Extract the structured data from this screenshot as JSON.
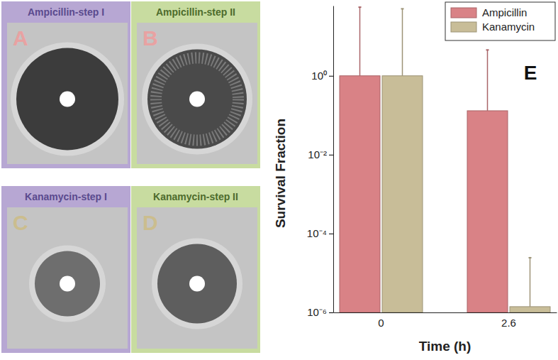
{
  "panels": [
    {
      "title": "Ampicillin-step I",
      "label": "A"
    },
    {
      "title": "Ampicillin-step II",
      "label": "B"
    },
    {
      "title": "Kanamycin-step I",
      "label": "C"
    },
    {
      "title": "Kanamycin-step II",
      "label": "D"
    }
  ],
  "chart_data": {
    "type": "bar",
    "annotations": [
      "E"
    ],
    "categories": [
      "0",
      "2.6"
    ],
    "x_label": "Time (h)",
    "y_label": "Survival Fraction",
    "series": [
      {
        "name": "Ampicillin",
        "color": "#d98286",
        "values": [
          1,
          0.13
        ],
        "errors": [
          54,
          4.4
        ]
      },
      {
        "name": "Kanamycin",
        "color": "#c8bd98",
        "values": [
          1,
          1.4e-06
        ],
        "errors": [
          49,
          2.3e-05
        ]
      }
    ],
    "ylim": [
      1e-06,
      60
    ],
    "yticks": [
      {
        "value": 1e-06,
        "label": "10⁻⁶"
      },
      {
        "value": 0.0001,
        "label": "10⁻⁴"
      },
      {
        "value": 0.01,
        "label": "10⁻²"
      },
      {
        "value": 1,
        "label": "10⁰"
      }
    ],
    "log": "y",
    "legend": "upper right"
  }
}
